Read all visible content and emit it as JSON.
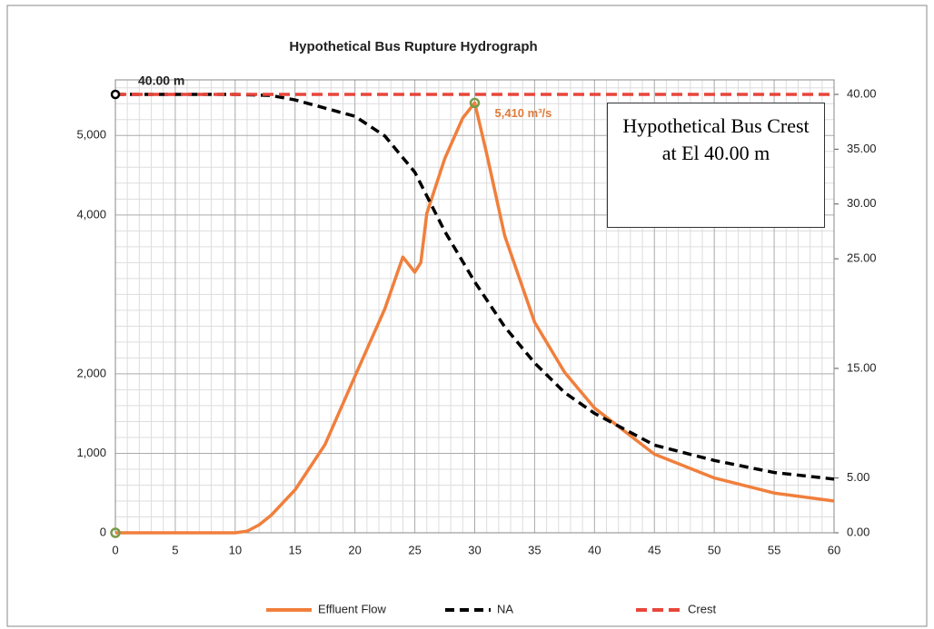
{
  "chart_data": {
    "type": "line",
    "title": "Hypothetical Bus Rupture Hydrograph",
    "xlim": [
      0,
      60
    ],
    "xticks": [
      0,
      5,
      10,
      15,
      20,
      25,
      30,
      35,
      40,
      45,
      50,
      55,
      60
    ],
    "ylim": [
      0,
      5700
    ],
    "yticks": [
      0,
      {
        "value": 1000,
        "label": "1,000"
      },
      {
        "value": 2000,
        "label": "2,000"
      },
      {
        "value": 4000,
        "label": "4,000"
      },
      {
        "value": 5000,
        "label": "5,000"
      }
    ],
    "y2lim": [
      0,
      40
    ],
    "y2ticks": [
      {
        "value": 0,
        "label": "0.00"
      },
      {
        "value": 5,
        "label": "5.00"
      },
      {
        "value": 15,
        "label": "15.00"
      },
      {
        "value": 25,
        "label": "25.00"
      },
      {
        "value": 30,
        "label": "30.00"
      },
      {
        "value": 35,
        "label": "35.00"
      },
      {
        "value": 40,
        "label": "40.00"
      }
    ],
    "grid": true,
    "series": [
      {
        "name": "Effluent Flow",
        "color": "#f07f3c",
        "x": [
          0,
          5,
          10,
          11,
          12,
          13,
          15,
          17.5,
          20,
          22.5,
          24,
          25,
          25.5,
          26,
          27.5,
          29,
          30,
          31,
          32.5,
          35,
          37.5,
          40,
          45,
          50,
          55,
          60
        ],
        "values": [
          0,
          0,
          0,
          20,
          100,
          220,
          540,
          1110,
          1970,
          2820,
          3470,
          3280,
          3400,
          4020,
          4710,
          5220,
          5410,
          4770,
          3740,
          2650,
          2020,
          1570,
          990,
          690,
          500,
          400
        ]
      },
      {
        "name": "NA",
        "color": "#000000",
        "axis": "y2",
        "x": [
          0,
          10,
          13,
          15,
          20,
          22.5,
          25,
          27.5,
          30,
          32.5,
          35,
          37.5,
          40,
          45,
          50,
          55,
          60
        ],
        "values": [
          40,
          40,
          39.9,
          39.5,
          38.0,
          36.2,
          32.9,
          27.5,
          22.9,
          18.8,
          15.5,
          12.8,
          10.9,
          8.0,
          6.6,
          5.5,
          4.9
        ]
      },
      {
        "name": "Crest",
        "color": "#e8463a",
        "axis": "y2",
        "x": [
          0,
          60
        ],
        "values": [
          40,
          40
        ]
      }
    ],
    "annotations": {
      "crest_label": "40.00 m",
      "peak_label": "5,410 m³/s",
      "note": "Hypothetical Bus Crest at El 40.00 m"
    }
  }
}
